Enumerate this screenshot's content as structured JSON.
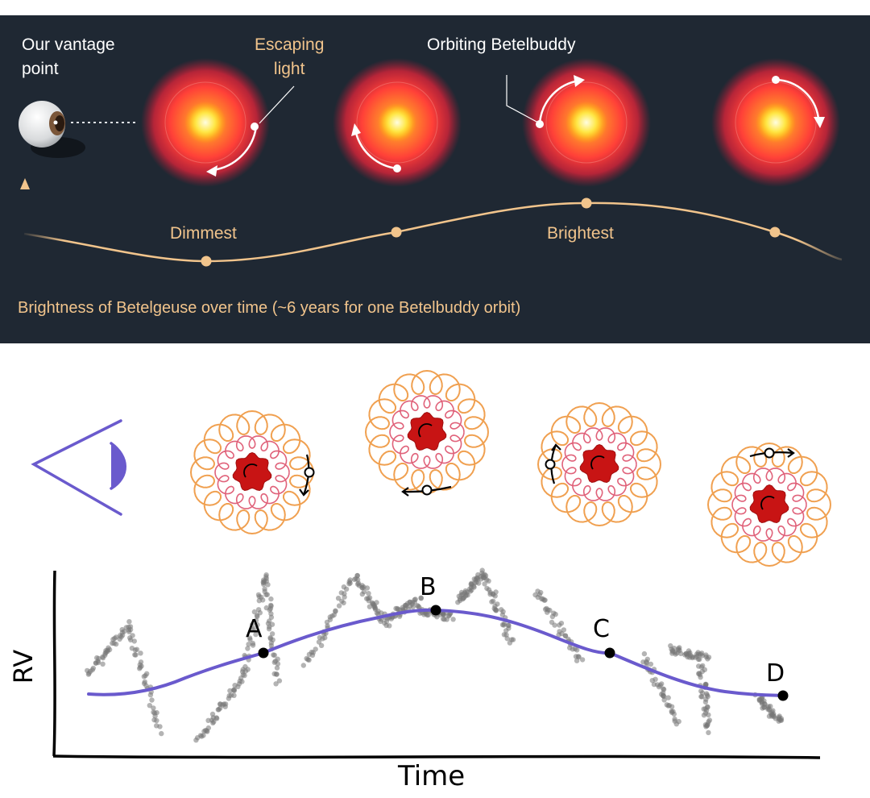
{
  "top_panel": {
    "vantage_label": [
      "Our vantage",
      "point"
    ],
    "escaping_label": [
      "Escaping",
      "light"
    ],
    "orbiting_label": "Orbiting Betelbuddy",
    "dimmest_label": "Dimmest",
    "brightest_label": "Brightest",
    "caption": "Brightness of Betelgeuse over time (~6 years for one Betelbuddy orbit)",
    "colors": {
      "background": "#1f2833",
      "accent": "#f1c48c",
      "text": "#ffffff"
    }
  },
  "bottom_panel": {
    "point_labels": [
      "A",
      "B",
      "C",
      "D"
    ],
    "ylabel": "RV",
    "xlabel": "Time",
    "colors": {
      "curve": "#6a5acd",
      "eye": "#6a5acd",
      "star": "#c81414",
      "inner_loops": "#e0627a",
      "outer_loops": "#f0a050"
    }
  }
}
